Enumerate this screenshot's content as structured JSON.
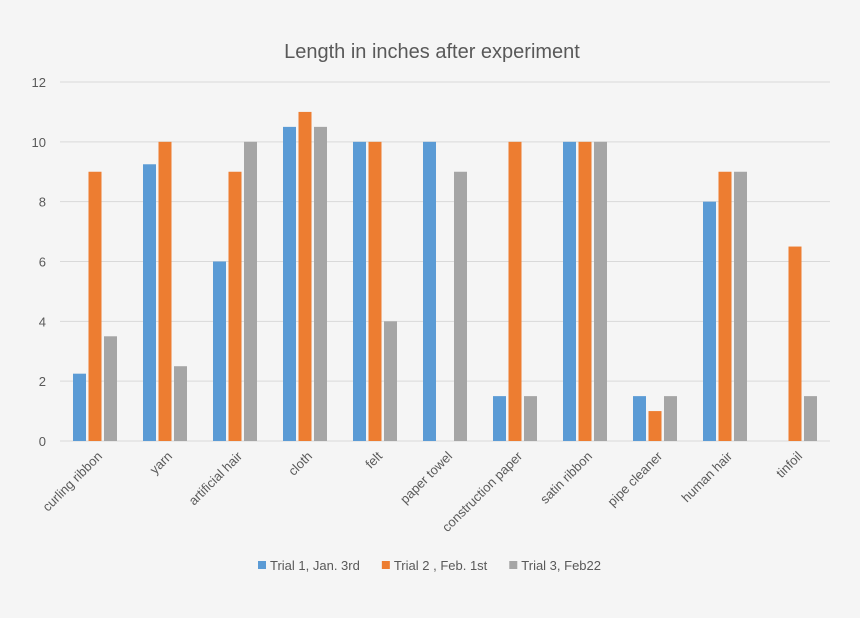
{
  "chart_data": {
    "type": "bar",
    "title": "Length in inches after experiment",
    "xlabel": "",
    "ylabel": "",
    "ylim": [
      0,
      12
    ],
    "yticks": [
      0,
      2,
      4,
      6,
      8,
      10,
      12
    ],
    "grid": true,
    "legend_position": "bottom",
    "categories": [
      "curling ribbon",
      "yarn",
      "artificial hair",
      "cloth",
      "felt",
      "paper towel",
      "construction paper",
      "satin ribbon",
      "pipe cleaner",
      "human hair",
      "tinfoil"
    ],
    "series": [
      {
        "name": "Trial 1, Jan. 3rd",
        "color": "#5b9bd5",
        "values": [
          2.25,
          9.25,
          6,
          10.5,
          10,
          10,
          1.5,
          10,
          1.5,
          8,
          0
        ]
      },
      {
        "name": "Trial 2 , Feb. 1st",
        "color": "#ed7d31",
        "values": [
          9,
          10,
          9,
          11,
          10,
          0,
          10,
          10,
          1,
          9,
          6.5
        ]
      },
      {
        "name": "Trial 3, Feb22",
        "color": "#a5a5a5",
        "values": [
          3.5,
          2.5,
          10,
          10.5,
          4,
          9,
          1.5,
          10,
          1.5,
          9,
          1.5
        ]
      }
    ]
  }
}
